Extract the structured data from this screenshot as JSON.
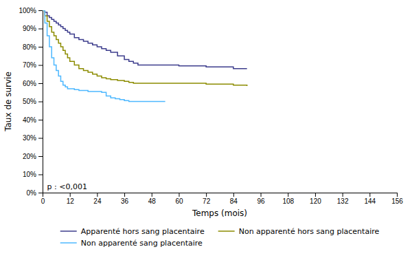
{
  "chart_data": {
    "type": "step",
    "xlabel": "Temps (mois)",
    "ylabel": "Taux de survie",
    "xlim": [
      0,
      156
    ],
    "ylim": [
      0,
      1.0
    ],
    "xticks": [
      0,
      12,
      24,
      36,
      48,
      60,
      72,
      84,
      96,
      108,
      120,
      132,
      144,
      156
    ],
    "yticks": [
      {
        "value": 0.0,
        "label": "0%"
      },
      {
        "value": 0.1,
        "label": "10%"
      },
      {
        "value": 0.2,
        "label": "20%"
      },
      {
        "value": 0.3,
        "label": "30%"
      },
      {
        "value": 0.4,
        "label": "40%"
      },
      {
        "value": 0.5,
        "label": "50%"
      },
      {
        "value": 0.6,
        "label": "60%"
      },
      {
        "value": 0.7,
        "label": "70%"
      },
      {
        "value": 0.8,
        "label": "80%"
      },
      {
        "value": 0.9,
        "label": "90%"
      },
      {
        "value": 1.0,
        "label": "100%"
      }
    ],
    "grid": false,
    "legend": "bottom",
    "annotations": [
      {
        "text": "p : <0,001",
        "x": 2,
        "y": 0.02
      }
    ],
    "series": [
      {
        "name": "Apparenté hors sang placentaire",
        "color": "#3c3c8c",
        "x": [
          0,
          1,
          2,
          3,
          4,
          5,
          6,
          7,
          8,
          9,
          10,
          11,
          12,
          14,
          16,
          18,
          20,
          22,
          24,
          26,
          28,
          30,
          33,
          36,
          38,
          40,
          42,
          44,
          46,
          48,
          54,
          60,
          66,
          72,
          78,
          84,
          90
        ],
        "values": [
          1.0,
          0.99,
          0.97,
          0.96,
          0.95,
          0.94,
          0.93,
          0.92,
          0.91,
          0.9,
          0.89,
          0.88,
          0.87,
          0.85,
          0.84,
          0.83,
          0.82,
          0.81,
          0.8,
          0.79,
          0.78,
          0.77,
          0.75,
          0.73,
          0.72,
          0.71,
          0.7,
          0.7,
          0.7,
          0.7,
          0.7,
          0.695,
          0.695,
          0.69,
          0.69,
          0.68,
          0.68
        ]
      },
      {
        "name": "Non apparenté hors sang placentaire",
        "color": "#8c8c00",
        "x": [
          0,
          1,
          2,
          3,
          4,
          5,
          6,
          7,
          8,
          9,
          10,
          11,
          12,
          14,
          16,
          18,
          20,
          22,
          24,
          26,
          28,
          30,
          33,
          36,
          38,
          40,
          42,
          44,
          48,
          54,
          60,
          66,
          72,
          78,
          84,
          90
        ],
        "values": [
          1.0,
          0.97,
          0.94,
          0.91,
          0.88,
          0.86,
          0.84,
          0.82,
          0.8,
          0.78,
          0.76,
          0.74,
          0.72,
          0.7,
          0.68,
          0.67,
          0.66,
          0.65,
          0.64,
          0.63,
          0.625,
          0.62,
          0.615,
          0.61,
          0.605,
          0.6,
          0.6,
          0.6,
          0.6,
          0.6,
          0.6,
          0.6,
          0.595,
          0.595,
          0.59,
          0.585
        ]
      },
      {
        "name": "Non apparenté sang placentaire",
        "color": "#4db8ff",
        "x": [
          0,
          1,
          2,
          3,
          4,
          5,
          6,
          7,
          8,
          9,
          10,
          11,
          12,
          14,
          16,
          18,
          20,
          22,
          24,
          26,
          28,
          30,
          32,
          34,
          36,
          38,
          40,
          42,
          44,
          46,
          48,
          54
        ],
        "values": [
          1.0,
          0.93,
          0.86,
          0.8,
          0.74,
          0.7,
          0.67,
          0.64,
          0.61,
          0.59,
          0.58,
          0.57,
          0.57,
          0.565,
          0.56,
          0.56,
          0.555,
          0.555,
          0.555,
          0.55,
          0.53,
          0.52,
          0.515,
          0.51,
          0.505,
          0.5,
          0.5,
          0.5,
          0.5,
          0.5,
          0.5,
          0.5
        ]
      }
    ]
  }
}
